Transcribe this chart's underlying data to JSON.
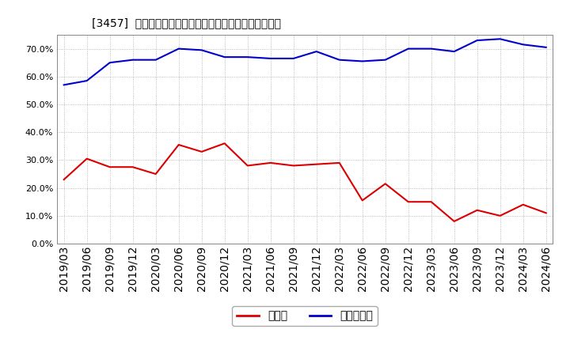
{
  "title": "[3457]  現預金、有利子負債の総資産に対する比率の推移",
  "x_labels": [
    "2019/03",
    "2019/06",
    "2019/09",
    "2019/12",
    "2020/03",
    "2020/06",
    "2020/09",
    "2020/12",
    "2021/03",
    "2021/06",
    "2021/09",
    "2021/12",
    "2022/03",
    "2022/06",
    "2022/09",
    "2022/12",
    "2023/03",
    "2023/06",
    "2023/09",
    "2023/12",
    "2024/03",
    "2024/06"
  ],
  "cash": [
    23.0,
    30.5,
    27.5,
    27.5,
    25.0,
    35.5,
    33.0,
    36.0,
    28.0,
    29.0,
    28.0,
    28.5,
    29.0,
    15.5,
    21.5,
    15.0,
    15.0,
    8.0,
    12.0,
    10.0,
    14.0,
    11.0
  ],
  "debt": [
    57.0,
    58.5,
    65.0,
    66.0,
    66.0,
    70.0,
    69.5,
    67.0,
    67.0,
    66.5,
    66.5,
    69.0,
    66.0,
    65.5,
    66.0,
    70.0,
    70.0,
    69.0,
    73.0,
    73.5,
    71.5,
    70.5
  ],
  "cash_color": "#dd0000",
  "debt_color": "#0000cc",
  "background_color": "#ffffff",
  "plot_bg_color": "#ffffff",
  "ylim": [
    0,
    75
  ],
  "yticks": [
    0.0,
    10.0,
    20.0,
    30.0,
    40.0,
    50.0,
    60.0,
    70.0
  ],
  "legend_cash": "現預金",
  "legend_debt": "有利子負債",
  "title_fontsize": 11,
  "tick_fontsize": 7.5,
  "ytick_fontsize": 8
}
